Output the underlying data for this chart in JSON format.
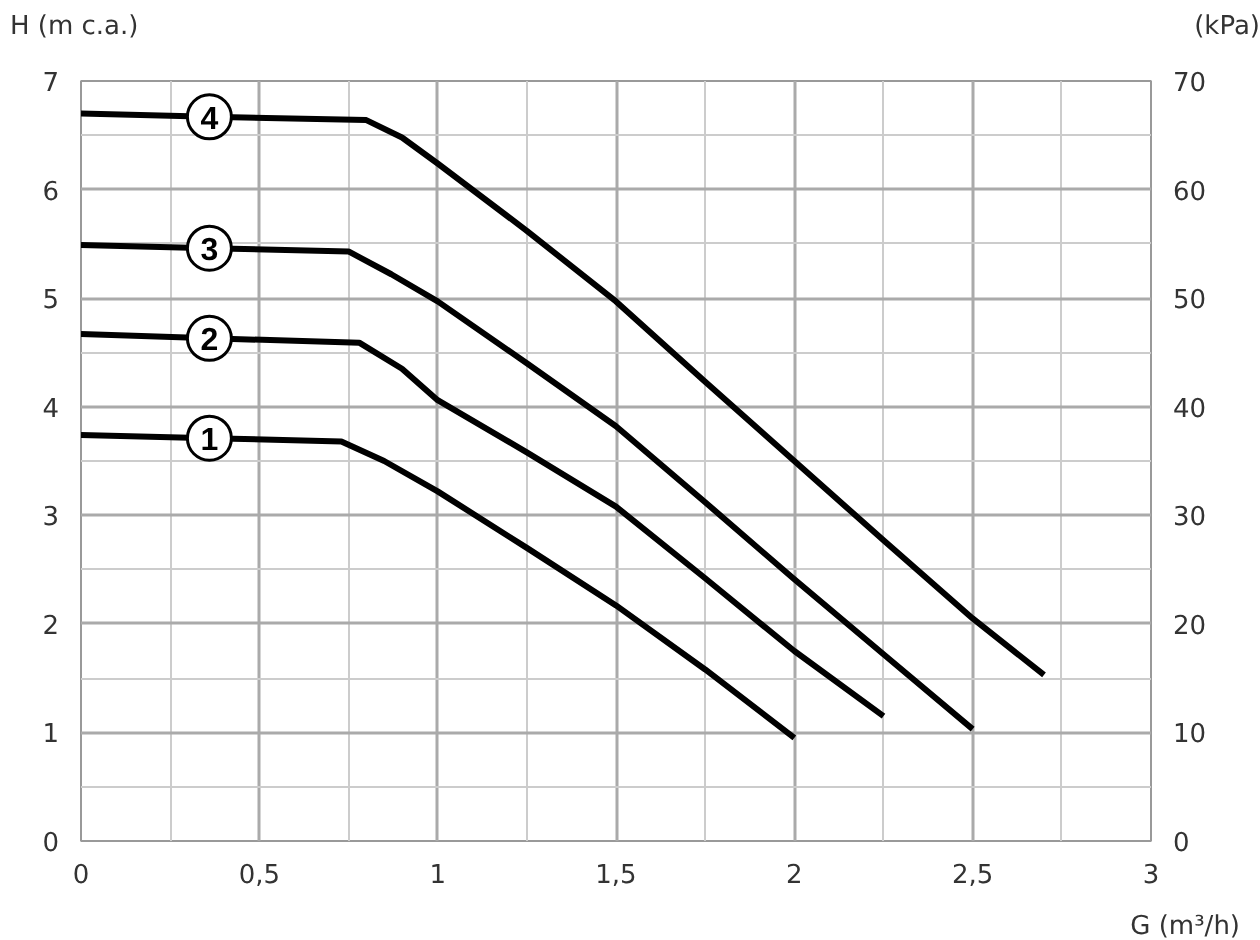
{
  "chart_data": {
    "type": "line",
    "xlabel": "G (m³/h)",
    "ylabel": "H (m c.a.)",
    "y2label": "(kPa)",
    "xlim": [
      0,
      3
    ],
    "xticks": [
      0,
      {
        "value": 0.5,
        "label": "0,5"
      },
      1,
      {
        "value": 1.5,
        "label": "1,5"
      },
      2,
      {
        "value": 2.5,
        "label": "2,5"
      },
      3
    ],
    "ylim": [
      0,
      7
    ],
    "yticks": [
      0,
      1,
      2,
      3,
      4,
      5,
      6,
      7
    ],
    "y2lim": [
      0,
      70
    ],
    "y2ticks": [
      0,
      10,
      20,
      30,
      40,
      50,
      60,
      70
    ],
    "grid": true,
    "marker": "none",
    "line_style": "solid",
    "series": [
      {
        "name": "1",
        "color": "#000000",
        "x": [
          0,
          0.36,
          0.73,
          0.85,
          1,
          1.25,
          1.5,
          1.75,
          2
        ],
        "values": [
          3.74,
          3.71,
          3.68,
          3.5,
          3.22,
          2.7,
          2.17,
          1.58,
          0.95
        ]
      },
      {
        "name": "2",
        "color": "#000000",
        "x": [
          0,
          0.36,
          0.78,
          0.9,
          1,
          1.25,
          1.5,
          1.75,
          2,
          2.25
        ],
        "values": [
          4.67,
          4.63,
          4.59,
          4.35,
          4.06,
          3.58,
          3.08,
          2.42,
          1.75,
          1.15
        ]
      },
      {
        "name": "3",
        "color": "#000000",
        "x": [
          0,
          0.36,
          0.75,
          0.87,
          1,
          1.25,
          1.5,
          1.75,
          2,
          2.25,
          2.5
        ],
        "values": [
          5.49,
          5.46,
          5.43,
          5.22,
          4.97,
          4.4,
          3.82,
          3.12,
          2.41,
          1.72,
          1.03
        ]
      },
      {
        "name": "4",
        "color": "#000000",
        "x": [
          0,
          0.36,
          0.8,
          0.9,
          1,
          1.25,
          1.5,
          1.75,
          2,
          2.25,
          2.5,
          2.7
        ],
        "values": [
          6.7,
          6.67,
          6.64,
          6.48,
          6.24,
          5.62,
          4.97,
          4.23,
          3.5,
          2.77,
          2.05,
          1.53
        ]
      }
    ]
  }
}
